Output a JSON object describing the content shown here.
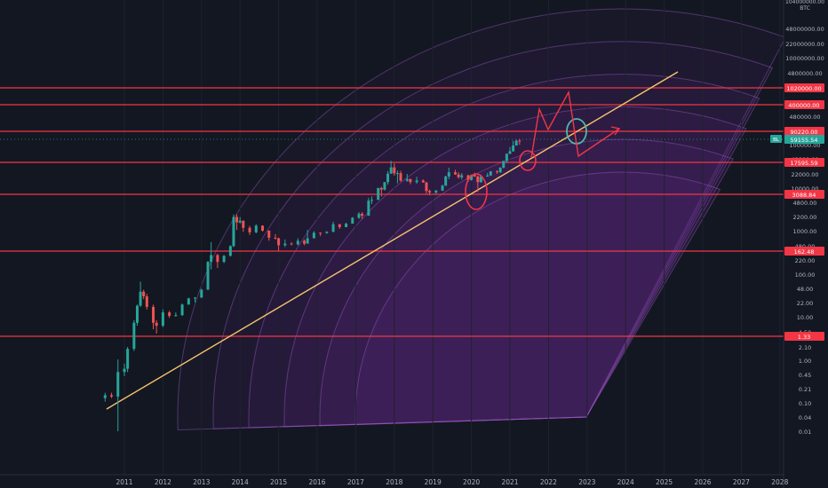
{
  "chart_data": {
    "type": "candlestick",
    "title": "",
    "symbol": "BTC",
    "y_scale": "log",
    "x_ticks": [
      "2011",
      "2012",
      "2013",
      "2014",
      "2015",
      "2016",
      "2017",
      "2018",
      "2019",
      "2020",
      "2021",
      "2022",
      "2023",
      "2024",
      "2025",
      "2026",
      "2027",
      "2028"
    ],
    "y_ticks": [
      "48000000.00",
      "22000000.00",
      "10000000.00",
      "4800000.00",
      "2200000.00",
      "1000000.00",
      "480000.00",
      "220000.00",
      "100000.00",
      "48000.00",
      "22000.00",
      "10000.00",
      "4800.00",
      "2200.00",
      "1000.00",
      "480.00",
      "220.00",
      "100.00",
      "48.00",
      "22.00",
      "10.00",
      "4.50",
      "2.10",
      "1.00",
      "0.45",
      "0.21",
      "0.10",
      "0.04",
      "0.01"
    ],
    "top_partial_labels": [
      "104000000.00",
      "BTC"
    ],
    "horizontal_levels": [
      {
        "label": "1020000.00",
        "value": 1020000
      },
      {
        "label": "400000.00",
        "value": 400000
      },
      {
        "label": "90220.00",
        "value": 90220
      },
      {
        "label": "17595.59",
        "value": 17595.59
      },
      {
        "label": "3088.84",
        "value": 3088.84
      },
      {
        "label": "162.48",
        "value": 162.48
      },
      {
        "label": "1.33",
        "value": 1.33
      }
    ],
    "current_price": {
      "label": "59155.54",
      "value": 59155.54
    },
    "mini_badge": "BL",
    "trendline": {
      "start": [
        "2010-07",
        0.035
      ],
      "end": [
        "2025-05",
        2600000
      ]
    },
    "candles": [
      [
        "2010-07",
        0.06,
        0.08,
        0.05,
        0.07
      ],
      [
        "2010-09",
        0.07,
        0.08,
        0.06,
        0.065
      ],
      [
        "2010-11",
        0.065,
        0.5,
        0.01,
        0.25
      ],
      [
        "2011-01",
        0.25,
        0.4,
        0.2,
        0.3
      ],
      [
        "2011-02",
        0.3,
        1.0,
        0.25,
        0.9
      ],
      [
        "2011-04",
        0.9,
        4.0,
        0.8,
        3.5
      ],
      [
        "2011-05",
        3.5,
        9.0,
        3.0,
        8.5
      ],
      [
        "2011-06",
        8.5,
        31,
        8,
        18
      ],
      [
        "2011-07",
        18,
        20,
        12,
        14
      ],
      [
        "2011-08",
        14,
        16,
        7,
        8
      ],
      [
        "2011-10",
        8,
        9,
        2.5,
        3.5
      ],
      [
        "2011-11",
        3.5,
        4,
        2,
        3
      ],
      [
        "2012-01",
        3,
        7,
        2.8,
        6
      ],
      [
        "2012-03",
        6,
        6.5,
        4.5,
        5
      ],
      [
        "2012-05",
        5,
        6,
        4.8,
        5.2
      ],
      [
        "2012-07",
        5.2,
        9.5,
        5,
        9
      ],
      [
        "2012-09",
        9,
        13,
        9,
        12.5
      ],
      [
        "2012-11",
        12.5,
        13.5,
        10,
        13
      ],
      [
        "2013-01",
        13,
        21,
        13,
        20
      ],
      [
        "2013-03",
        20,
        95,
        20,
        90
      ],
      [
        "2013-04",
        90,
        260,
        60,
        130
      ],
      [
        "2013-06",
        130,
        140,
        65,
        90
      ],
      [
        "2013-08",
        90,
        130,
        85,
        125
      ],
      [
        "2013-10",
        125,
        220,
        120,
        210
      ],
      [
        "2013-11",
        210,
        1150,
        200,
        1000
      ],
      [
        "2013-12",
        1000,
        1150,
        500,
        750
      ],
      [
        "2014-01",
        750,
        1000,
        700,
        820
      ],
      [
        "2014-02",
        820,
        830,
        450,
        560
      ],
      [
        "2014-04",
        560,
        620,
        380,
        440
      ],
      [
        "2014-06",
        440,
        680,
        420,
        630
      ],
      [
        "2014-08",
        630,
        640,
        460,
        480
      ],
      [
        "2014-10",
        480,
        490,
        280,
        330
      ],
      [
        "2014-12",
        330,
        400,
        300,
        320
      ],
      [
        "2015-01",
        320,
        330,
        165,
        220
      ],
      [
        "2015-03",
        220,
        300,
        200,
        240
      ],
      [
        "2015-05",
        240,
        260,
        220,
        230
      ],
      [
        "2015-07",
        230,
        320,
        220,
        280
      ],
      [
        "2015-09",
        280,
        300,
        220,
        240
      ],
      [
        "2015-10",
        240,
        500,
        240,
        320
      ],
      [
        "2015-12",
        320,
        470,
        320,
        430
      ],
      [
        "2016-02",
        430,
        440,
        360,
        420
      ],
      [
        "2016-04",
        420,
        470,
        410,
        450
      ],
      [
        "2016-06",
        450,
        780,
        450,
        680
      ],
      [
        "2016-08",
        680,
        690,
        530,
        580
      ],
      [
        "2016-10",
        580,
        740,
        580,
        700
      ],
      [
        "2016-12",
        700,
        1000,
        700,
        960
      ],
      [
        "2017-02",
        960,
        1300,
        900,
        1190
      ],
      [
        "2017-03",
        1190,
        1300,
        890,
        1070
      ],
      [
        "2017-05",
        1070,
        2800,
        1070,
        2400
      ],
      [
        "2017-06",
        2400,
        3000,
        2000,
        2500
      ],
      [
        "2017-08",
        2500,
        4700,
        2600,
        4700
      ],
      [
        "2017-09",
        4700,
        5000,
        3000,
        4300
      ],
      [
        "2017-10",
        4300,
        6400,
        4100,
        6400
      ],
      [
        "2017-11",
        6400,
        11500,
        5600,
        10000
      ],
      [
        "2017-12",
        10000,
        19800,
        10000,
        14000
      ],
      [
        "2018-01",
        14000,
        17200,
        9000,
        10200
      ],
      [
        "2018-02",
        10200,
        11800,
        6000,
        10300
      ],
      [
        "2018-03",
        10300,
        11700,
        6500,
        6900
      ],
      [
        "2018-05",
        6900,
        9900,
        6500,
        7500
      ],
      [
        "2018-06",
        7500,
        7800,
        5750,
        6400
      ],
      [
        "2018-08",
        6400,
        8500,
        5900,
        7000
      ],
      [
        "2018-10",
        7000,
        7400,
        6200,
        6300
      ],
      [
        "2018-11",
        6300,
        6500,
        3500,
        4000
      ],
      [
        "2018-12",
        4000,
        4300,
        3200,
        3700
      ],
      [
        "2019-02",
        3700,
        4200,
        3400,
        4100
      ],
      [
        "2019-04",
        4100,
        5600,
        4000,
        5300
      ],
      [
        "2019-05",
        5300,
        9000,
        5300,
        8600
      ],
      [
        "2019-06",
        8600,
        13800,
        7500,
        10800
      ],
      [
        "2019-08",
        10800,
        12300,
        9400,
        9600
      ],
      [
        "2019-09",
        9600,
        10900,
        7700,
        8300
      ],
      [
        "2019-10",
        8300,
        10300,
        7300,
        9200
      ],
      [
        "2019-12",
        9200,
        9500,
        6500,
        7200
      ],
      [
        "2020-01",
        7200,
        9600,
        6900,
        9350
      ],
      [
        "2020-02",
        9350,
        10500,
        8500,
        8600
      ],
      [
        "2020-03",
        8600,
        9200,
        3800,
        6400
      ],
      [
        "2020-04",
        6400,
        9500,
        6200,
        8600
      ],
      [
        "2020-06",
        8600,
        10400,
        8500,
        9100
      ],
      [
        "2020-07",
        9100,
        11500,
        8900,
        11300
      ],
      [
        "2020-09",
        11300,
        12000,
        9900,
        10800
      ],
      [
        "2020-10",
        10800,
        14100,
        10400,
        13800
      ],
      [
        "2020-11",
        13800,
        19800,
        13200,
        19700
      ],
      [
        "2020-12",
        19700,
        29300,
        17600,
        28900
      ],
      [
        "2021-01",
        28900,
        41900,
        28200,
        33100
      ],
      [
        "2021-02",
        33100,
        58300,
        32300,
        45200
      ],
      [
        "2021-03",
        45200,
        61700,
        44900,
        58800
      ],
      [
        "2021-04",
        58800,
        64800,
        47000,
        57700
      ]
    ],
    "arcs": 6,
    "annotations": [
      "red-circle-2020",
      "red-circle-2021",
      "teal-circle-2022",
      "red-zigzag-projection"
    ]
  }
}
